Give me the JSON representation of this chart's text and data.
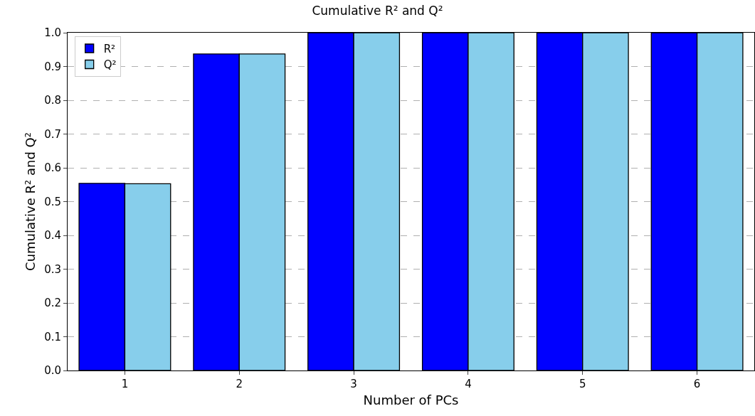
{
  "chart_data": {
    "type": "bar",
    "title": "Cumulative R² and Q²",
    "xlabel": "Number of PCs",
    "ylabel": "Cumulative R² and Q²",
    "categories": [
      "1",
      "2",
      "3",
      "4",
      "5",
      "6"
    ],
    "series": [
      {
        "name": "R²",
        "color": "#0000ff",
        "values": [
          0.554,
          0.937,
          1.0,
          1.0,
          1.0,
          1.0
        ]
      },
      {
        "name": "Q²",
        "color": "#87ceeb",
        "values": [
          0.553,
          0.937,
          1.0,
          1.0,
          1.0,
          1.0
        ]
      }
    ],
    "ylim": [
      0,
      1
    ],
    "yticks": [
      {
        "value": 0,
        "label": "0.0"
      },
      {
        "value": 0.1,
        "label": "0.1"
      },
      {
        "value": 0.2,
        "label": "0.2"
      },
      {
        "value": 0.3,
        "label": "0.3"
      },
      {
        "value": 0.4,
        "label": "0.4"
      },
      {
        "value": 0.5,
        "label": "0.5"
      },
      {
        "value": 0.6,
        "label": "0.6"
      },
      {
        "value": 0.7,
        "label": "0.7"
      },
      {
        "value": 0.8,
        "label": "0.8"
      },
      {
        "value": 0.9,
        "label": "0.9"
      },
      {
        "value": 1,
        "label": "1.0"
      }
    ],
    "grid": "y",
    "legend": "top left"
  }
}
